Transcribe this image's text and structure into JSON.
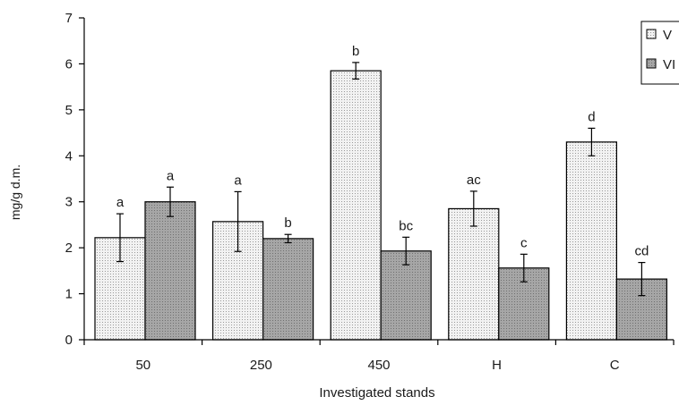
{
  "colors": {
    "axis": "#000000",
    "series_V_fill": "#f2f2f2",
    "series_V_dots": "#9a9a9a",
    "series_VI_fill": "#a6a6a6",
    "series_VI_dots": "#707070",
    "bar_stroke": "#000000"
  },
  "chart_data": {
    "type": "bar",
    "title": "",
    "xlabel": "Investigated stands",
    "ylabel": "mg/g d.m.",
    "ylim": [
      0,
      7
    ],
    "yticks": [
      0,
      1,
      2,
      3,
      4,
      5,
      6,
      7
    ],
    "categories": [
      "50",
      "250",
      "450",
      "H",
      "C"
    ],
    "grid": false,
    "legend_position": "top-right",
    "series": [
      {
        "name": "V",
        "values": [
          2.22,
          2.57,
          5.85,
          2.85,
          4.3
        ],
        "errors": [
          0.52,
          0.65,
          0.18,
          0.38,
          0.3
        ],
        "labels": [
          "a",
          "a",
          "b",
          "ac",
          "d"
        ]
      },
      {
        "name": "VI",
        "values": [
          3.0,
          2.2,
          1.93,
          1.56,
          1.32
        ],
        "errors": [
          0.32,
          0.09,
          0.3,
          0.3,
          0.36
        ],
        "labels": [
          "a",
          "b",
          "bc",
          "c",
          "cd"
        ]
      }
    ]
  }
}
